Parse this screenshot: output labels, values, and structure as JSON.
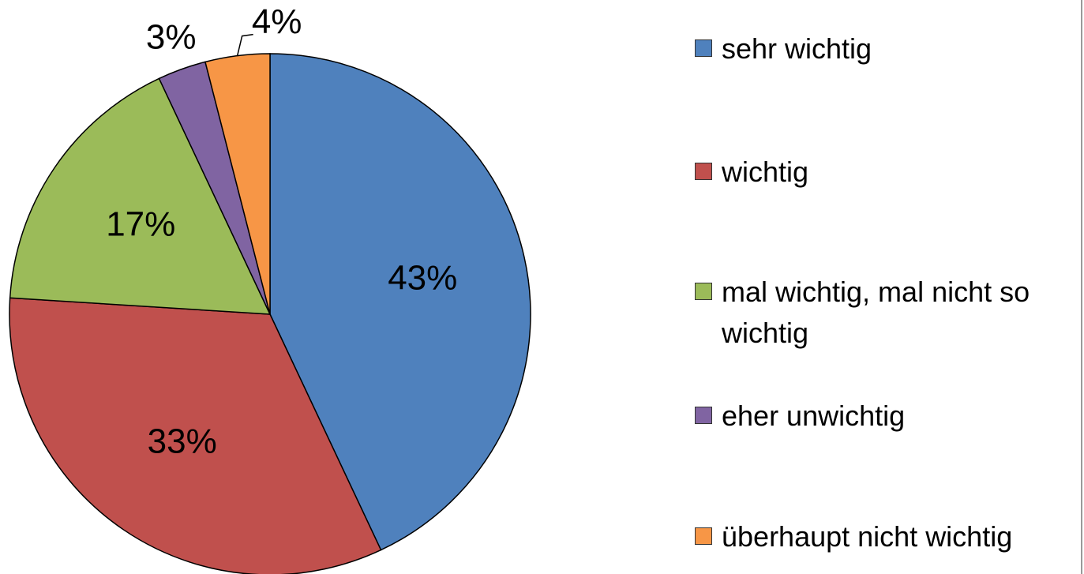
{
  "chart_data": {
    "type": "pie",
    "categories": [
      "sehr wichtig",
      "wichtig",
      "mal wichtig, mal nicht so wichtig",
      "eher unwichtig",
      "überhaupt nicht wichtig"
    ],
    "values": [
      43,
      33,
      17,
      3,
      4
    ],
    "value_labels": [
      "43%",
      "33%",
      "17%",
      "3%",
      "4%"
    ],
    "colors": [
      "#4f81bd",
      "#c0504d",
      "#9bbb59",
      "#8064a2",
      "#f79646"
    ],
    "legend": "right"
  }
}
